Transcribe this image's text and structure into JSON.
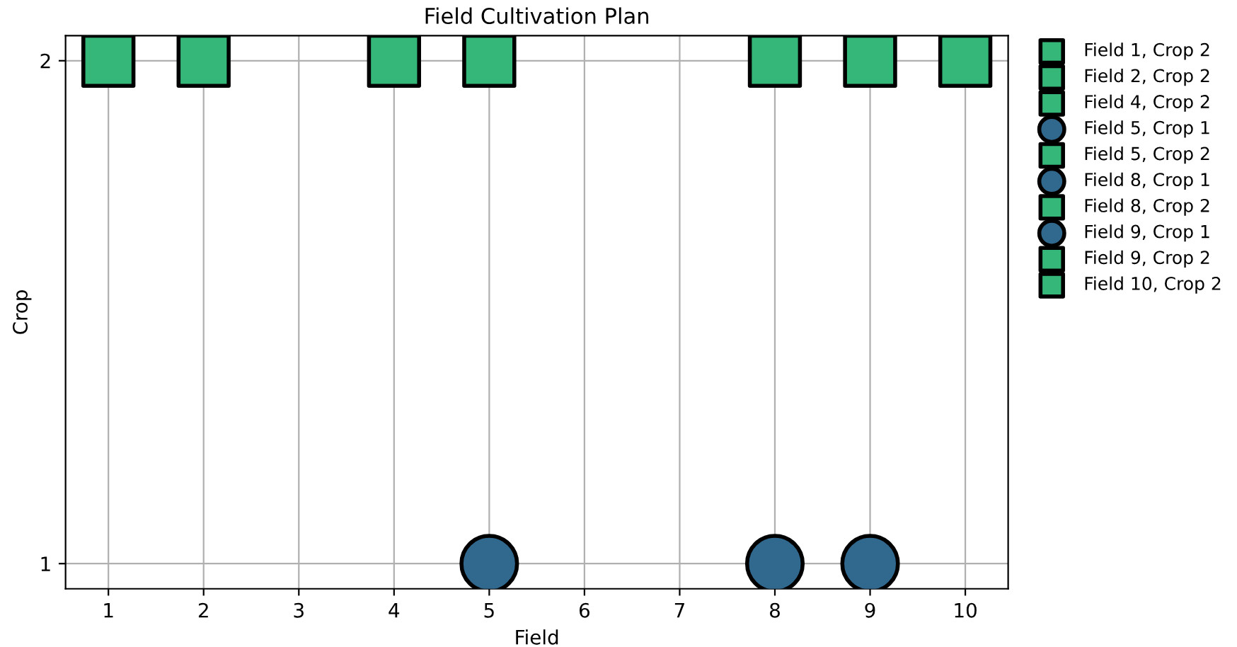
{
  "chart_data": {
    "type": "scatter",
    "title": "Field Cultivation Plan",
    "xlabel": "Field",
    "ylabel": "Crop",
    "xlim": [
      0.55,
      10.45
    ],
    "ylim": [
      0.95,
      2.05
    ],
    "xticks": [
      1,
      2,
      3,
      4,
      5,
      6,
      7,
      8,
      9,
      10
    ],
    "yticks": [
      1,
      2
    ],
    "grid": true,
    "legend": "top right",
    "series": [
      {
        "name": "Field 1, Crop 2",
        "color": "#35b779",
        "marker": "square",
        "x": [
          1
        ],
        "values": [
          2
        ]
      },
      {
        "name": "Field 2, Crop 2",
        "color": "#35b779",
        "marker": "square",
        "x": [
          2
        ],
        "values": [
          2
        ]
      },
      {
        "name": "Field 4, Crop 2",
        "color": "#35b779",
        "marker": "square",
        "x": [
          4
        ],
        "values": [
          2
        ]
      },
      {
        "name": "Field 5, Crop 1",
        "color": "#31688e",
        "marker": "circle",
        "x": [
          5
        ],
        "values": [
          1
        ]
      },
      {
        "name": "Field 5, Crop 2",
        "color": "#35b779",
        "marker": "square",
        "x": [
          5
        ],
        "values": [
          2
        ]
      },
      {
        "name": "Field 8, Crop 1",
        "color": "#31688e",
        "marker": "circle",
        "x": [
          8
        ],
        "values": [
          1
        ]
      },
      {
        "name": "Field 8, Crop 2",
        "color": "#35b779",
        "marker": "square",
        "x": [
          8
        ],
        "values": [
          2
        ]
      },
      {
        "name": "Field 9, Crop 1",
        "color": "#31688e",
        "marker": "circle",
        "x": [
          9
        ],
        "values": [
          1
        ]
      },
      {
        "name": "Field 9, Crop 2",
        "color": "#35b779",
        "marker": "square",
        "x": [
          9
        ],
        "values": [
          2
        ]
      },
      {
        "name": "Field 10, Crop 2",
        "color": "#35b779",
        "marker": "square",
        "x": [
          10
        ],
        "values": [
          2
        ]
      }
    ]
  }
}
